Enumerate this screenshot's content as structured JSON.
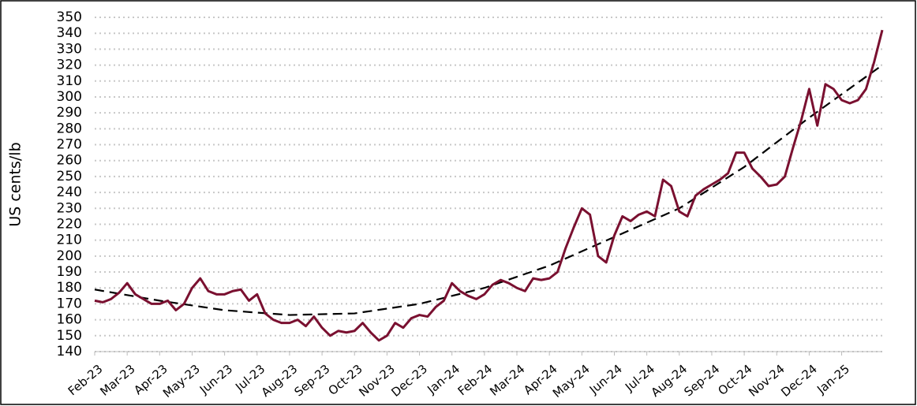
{
  "chart_data": {
    "type": "line",
    "y_label": "US cents/lb",
    "x": [
      0,
      0.25,
      0.5,
      0.75,
      1,
      1.25,
      1.5,
      1.75,
      2,
      2.25,
      2.5,
      2.75,
      3,
      3.25,
      3.5,
      3.75,
      4,
      4.25,
      4.5,
      4.75,
      5,
      5.25,
      5.5,
      5.75,
      6,
      6.25,
      6.5,
      6.75,
      7,
      7.25,
      7.5,
      7.75,
      8,
      8.25,
      8.5,
      8.75,
      9,
      9.25,
      9.5,
      9.75,
      10,
      10.25,
      10.5,
      10.75,
      11,
      11.25,
      11.5,
      11.75,
      12,
      12.25,
      12.5,
      12.75,
      13,
      13.25,
      13.5,
      13.75,
      14,
      14.25,
      14.5,
      14.75,
      15,
      15.25,
      15.5,
      15.75,
      16,
      16.25,
      16.5,
      16.75,
      17,
      17.25,
      17.5,
      17.75,
      18,
      18.25,
      18.5,
      18.75,
      19,
      19.25,
      19.5,
      19.75,
      20,
      20.25,
      20.5,
      20.75,
      21,
      21.25,
      21.5,
      21.75,
      22,
      22.25,
      22.5,
      22.75,
      23,
      23.25,
      23.5,
      23.75,
      24,
      24.25
    ],
    "series": [
      {
        "color": "#7a1030",
        "values": [
          172,
          171,
          173,
          177,
          183,
          176,
          173,
          170,
          170,
          172,
          166,
          170,
          180,
          186,
          178,
          176,
          176,
          178,
          179,
          172,
          176,
          164,
          160,
          158,
          158,
          160,
          156,
          162,
          155,
          150,
          153,
          152,
          153,
          158,
          152,
          147,
          150,
          158,
          155,
          161,
          163,
          162,
          168,
          172,
          183,
          178,
          175,
          173,
          176,
          182,
          185,
          183,
          180,
          178,
          186,
          185,
          186,
          190,
          205,
          218,
          230,
          226,
          200,
          196,
          213,
          225,
          222,
          226,
          228,
          225,
          248,
          244,
          228,
          225,
          238,
          242,
          245,
          248,
          252,
          265,
          265,
          255,
          250,
          244,
          245,
          250,
          268,
          285,
          305,
          282,
          308,
          305,
          298,
          296,
          298,
          305,
          322,
          342
        ]
      }
    ],
    "trend": {
      "x": [
        0,
        2,
        4,
        6,
        8,
        10,
        12,
        14,
        16,
        18,
        20,
        22,
        24.25
      ],
      "values": [
        179,
        172,
        166,
        163,
        164,
        170,
        180,
        194,
        212,
        230,
        256,
        287,
        320
      ],
      "color": "#000000",
      "dashed": true
    },
    "xlim": [
      0,
      24.25
    ],
    "xticks": [
      {
        "value": 0,
        "label": "Feb-23"
      },
      {
        "value": 1,
        "label": "Mar-23"
      },
      {
        "value": 2,
        "label": "Apr-23"
      },
      {
        "value": 3,
        "label": "May-23"
      },
      {
        "value": 4,
        "label": "Jun-23"
      },
      {
        "value": 5,
        "label": "Jul-23"
      },
      {
        "value": 6,
        "label": "Aug-23"
      },
      {
        "value": 7,
        "label": "Sep-23"
      },
      {
        "value": 8,
        "label": "Oct-23"
      },
      {
        "value": 9,
        "label": "Nov-23"
      },
      {
        "value": 10,
        "label": "Dec-23"
      },
      {
        "value": 11,
        "label": "Jan-24"
      },
      {
        "value": 12,
        "label": "Feb-24"
      },
      {
        "value": 13,
        "label": "Mar-24"
      },
      {
        "value": 14,
        "label": "Apr-24"
      },
      {
        "value": 15,
        "label": "May-24"
      },
      {
        "value": 16,
        "label": "Jun-24"
      },
      {
        "value": 17,
        "label": "Jul-24"
      },
      {
        "value": 18,
        "label": "Aug-24"
      },
      {
        "value": 19,
        "label": "Sep-24"
      },
      {
        "value": 20,
        "label": "Oct-24"
      },
      {
        "value": 21,
        "label": "Nov-24"
      },
      {
        "value": 22,
        "label": "Dec-24"
      },
      {
        "value": 23,
        "label": "Jan-25"
      }
    ],
    "ylim": [
      140,
      350
    ],
    "yticks": [
      140,
      150,
      160,
      170,
      180,
      190,
      200,
      210,
      220,
      230,
      240,
      250,
      260,
      270,
      280,
      290,
      300,
      310,
      320,
      330,
      340,
      350
    ],
    "grid": true
  }
}
